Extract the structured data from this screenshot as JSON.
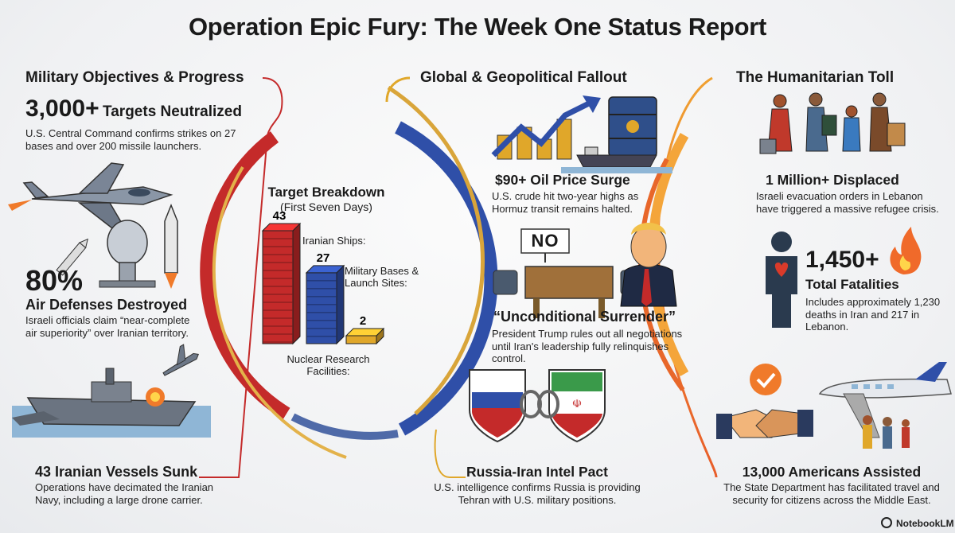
{
  "title": "Operation Epic Fury: The Week One Status Report",
  "left": {
    "heading": "Military Objectives & Progress",
    "targets": {
      "number": "3,000+",
      "label": "Targets Neutralized",
      "desc": "U.S. Central Command confirms strikes on 27 bases and over 200 missile launchers."
    },
    "air": {
      "number": "80%",
      "label": "Air Defenses Destroyed",
      "desc": "Israeli officials claim “near-complete air superiority” over Iranian territory."
    },
    "navy": {
      "label": "43 Iranian Vessels Sunk",
      "desc": "Operations have decimated the Iranian Navy, including a large drone carrier."
    }
  },
  "center_chart": {
    "title": "Target Breakdown",
    "subtitle": "(First Seven Days)",
    "bars": [
      {
        "value": 43,
        "value_label": "43",
        "label": "Iranian Ships:",
        "color": "#c42a2a"
      },
      {
        "value": 27,
        "value_label": "27",
        "label": "Military Bases & Launch Sites:",
        "color": "#2f4fa8"
      },
      {
        "value": 2,
        "value_label": "2",
        "label": "Nuclear Research Facilities:",
        "color": "#e0a72a"
      }
    ]
  },
  "middle": {
    "heading": "Global & Geopolitical Fallout",
    "oil": {
      "label": "$90+ Oil Price Surge",
      "desc": "U.S. crude hit two-year highs as Hormuz transit remains halted."
    },
    "sign_text": "NO",
    "surrender": {
      "label": "“Unconditional Surrender”",
      "desc": "President Trump rules out all negotiations until Iran's leadership fully relinquishes control."
    },
    "pact": {
      "label": "Russia-Iran Intel Pact",
      "desc": "U.S. intelligence confirms Russia is providing Tehran with U.S. military positions."
    }
  },
  "right": {
    "heading": "The Humanitarian Toll",
    "displaced": {
      "label": "1 Million+ Displaced",
      "desc": "Israeli evacuation orders in Lebanon have triggered a massive refugee crisis."
    },
    "fatalities": {
      "number": "1,450+",
      "label": "Total Fatalities",
      "desc": "Includes approximately 1,230 deaths in Iran and 217 in Lebanon."
    },
    "americans": {
      "label": "13,000 Americans Assisted",
      "desc": "The State Department has facilitated travel and security for citizens across the Middle East."
    }
  },
  "brand": "NotebookLM",
  "colors": {
    "red": "#c42a2a",
    "blue": "#2f4fa8",
    "gold": "#e0a72a",
    "orange": "#f07a2a"
  }
}
